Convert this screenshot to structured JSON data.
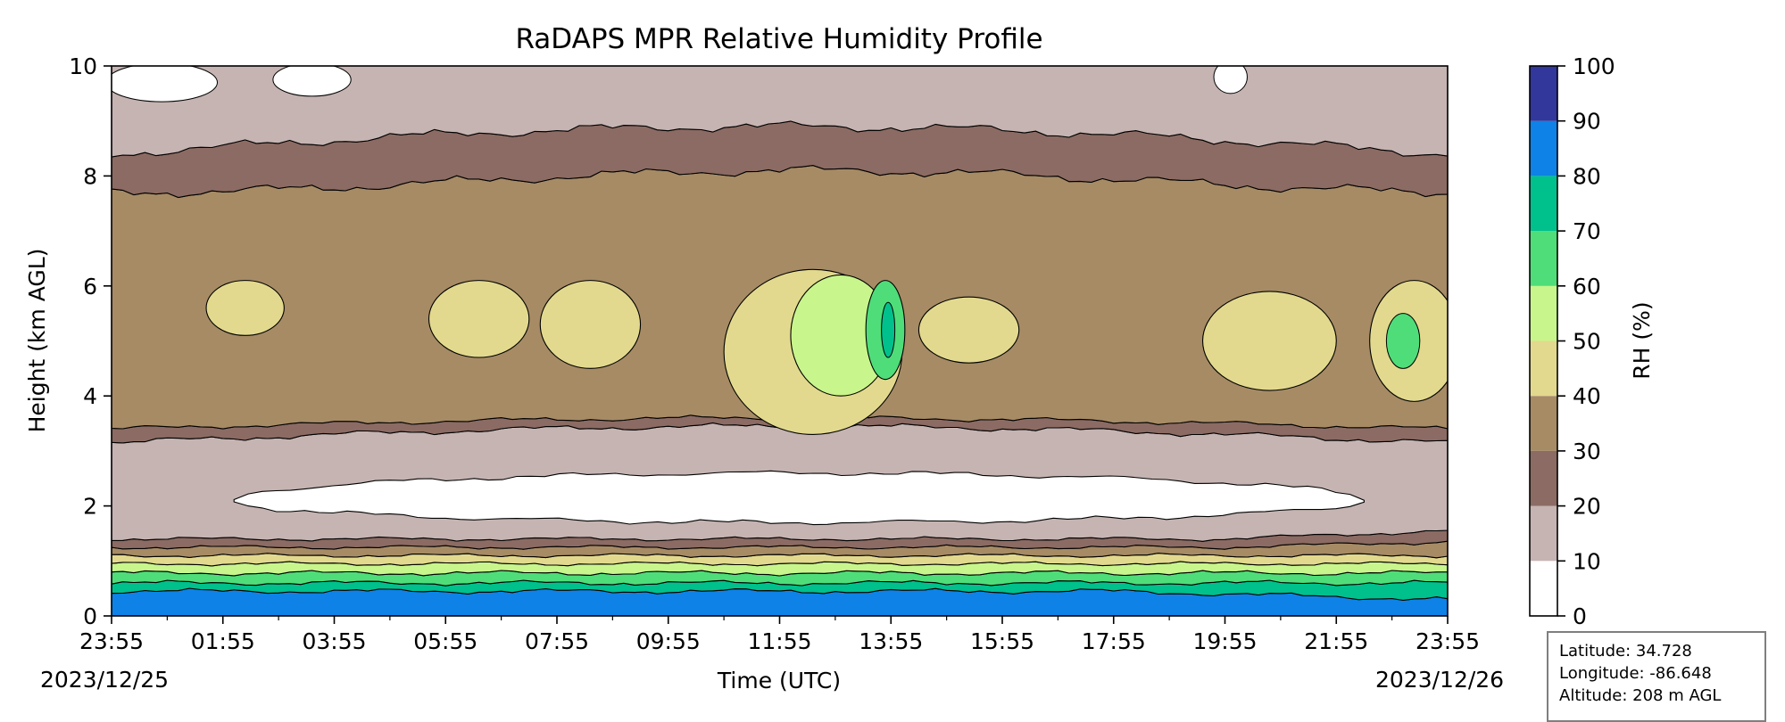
{
  "chart_data": {
    "type": "heatmap",
    "subtype": "filled-contour",
    "title": "RaDAPS MPR Relative Humidity Profile",
    "xlabel": "Time (UTC)",
    "ylabel": "Height (km AGL)",
    "x_ticks": [
      "23:55",
      "01:55",
      "03:55",
      "05:55",
      "07:55",
      "09:55",
      "11:55",
      "13:55",
      "15:55",
      "17:55",
      "19:55",
      "21:55",
      "23:55"
    ],
    "x_hours": [
      0,
      2,
      4,
      6,
      8,
      10,
      12,
      14,
      16,
      18,
      20,
      22,
      24
    ],
    "xlim_hours": [
      0,
      24
    ],
    "date_start": "2023/12/25",
    "date_end": "2023/12/26",
    "y_ticks": [
      "0",
      "2",
      "4",
      "6",
      "8",
      "10"
    ],
    "ylim": [
      0,
      10
    ],
    "colorbar": {
      "label": "RH (%)",
      "levels": [
        0,
        10,
        20,
        30,
        40,
        50,
        60,
        70,
        80,
        90,
        100
      ],
      "tick_labels": [
        "0",
        "10",
        "20",
        "30",
        "40",
        "50",
        "60",
        "70",
        "80",
        "90",
        "100"
      ],
      "colors": [
        "#ffffff",
        "#c5b4b2",
        "#8b6b63",
        "#a68b65",
        "#e2d98e",
        "#c8f58c",
        "#4fdd79",
        "#00c08c",
        "#0e82e6",
        "#32379b"
      ]
    },
    "bands_approx": [
      {
        "height_km": [
          0.0,
          0.5
        ],
        "rh": "80-90"
      },
      {
        "height_km": [
          0.5,
          0.8
        ],
        "rh": "60-80"
      },
      {
        "height_km": [
          0.8,
          1.4
        ],
        "rh": "20-60"
      },
      {
        "height_km": [
          1.4,
          3.0
        ],
        "rh": "0-20"
      },
      {
        "height_km": [
          3.0,
          8.5
        ],
        "rh": "20-60"
      },
      {
        "height_km": [
          8.5,
          10.0
        ],
        "rh": "10-20"
      }
    ]
  },
  "info": {
    "latitude": "Latitude: 34.728",
    "longitude": "Longitude: -86.648",
    "altitude": "Altitude: 208 m AGL"
  }
}
